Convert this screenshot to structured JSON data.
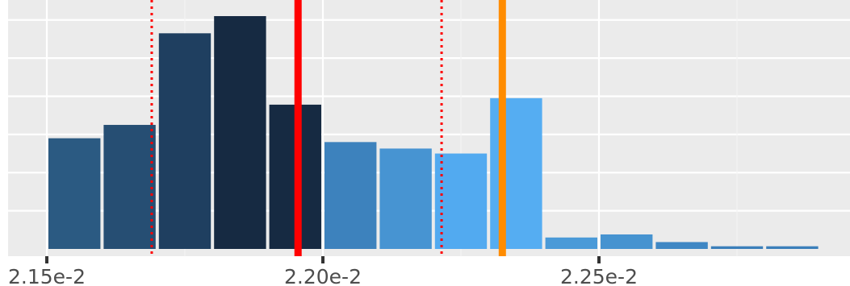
{
  "chart_data": {
    "type": "bar",
    "title": "",
    "xlabel": "",
    "ylabel": "",
    "x_axis": {
      "min": 0.0215,
      "max": 0.02295,
      "ticks": [
        {
          "value": 0.0215,
          "label": "2.15e-2"
        },
        {
          "value": 0.022,
          "label": "2.20e-2"
        },
        {
          "value": 0.0225,
          "label": "2.25e-2"
        }
      ],
      "minor_gridlines": [
        0.02175,
        0.02225,
        0.02275
      ]
    },
    "y_axis": {
      "min": 0,
      "max": 6.3,
      "gridlines": [
        1,
        2,
        3,
        4,
        5,
        6
      ]
    },
    "grid": true,
    "bin_width": 0.0001,
    "bins": [
      {
        "x0": 0.0215,
        "x1": 0.0216,
        "count": 2.9,
        "color": "#2b5a82"
      },
      {
        "x0": 0.0216,
        "x1": 0.0217,
        "count": 3.25,
        "color": "#264e73"
      },
      {
        "x0": 0.0217,
        "x1": 0.0218,
        "count": 5.65,
        "color": "#1f3f60"
      },
      {
        "x0": 0.0218,
        "x1": 0.0219,
        "count": 6.1,
        "color": "#162a42"
      },
      {
        "x0": 0.0219,
        "x1": 0.022,
        "count": 3.78,
        "color": "#162a42"
      },
      {
        "x0": 0.022,
        "x1": 0.0221,
        "count": 2.8,
        "color": "#3d82bd"
      },
      {
        "x0": 0.0221,
        "x1": 0.0222,
        "count": 2.63,
        "color": "#4794d2"
      },
      {
        "x0": 0.0222,
        "x1": 0.0223,
        "count": 2.5,
        "color": "#52aaf0"
      },
      {
        "x0": 0.0223,
        "x1": 0.0224,
        "count": 3.95,
        "color": "#55adf2"
      },
      {
        "x0": 0.0224,
        "x1": 0.0225,
        "count": 0.3,
        "color": "#4a9ad8"
      },
      {
        "x0": 0.0225,
        "x1": 0.0226,
        "count": 0.38,
        "color": "#4693d0"
      },
      {
        "x0": 0.0226,
        "x1": 0.0227,
        "count": 0.18,
        "color": "#3f87c4"
      },
      {
        "x0": 0.0227,
        "x1": 0.0228,
        "count": 0.07,
        "color": "#3b7fba"
      },
      {
        "x0": 0.0228,
        "x1": 0.0229,
        "count": 0.07,
        "color": "#3b7fba"
      }
    ],
    "reference_lines": [
      {
        "x": 0.021955,
        "style": "solid",
        "color": "#ff0000"
      },
      {
        "x": 0.022325,
        "style": "solid",
        "color": "#ff8c00"
      },
      {
        "x": 0.02169,
        "style": "dotted",
        "color": "#ff0000"
      },
      {
        "x": 0.022215,
        "style": "dotted",
        "color": "#ff0000"
      }
    ],
    "colors": {
      "panel_background": "#ebebeb",
      "grid_major": "#ffffff",
      "grid_minor": "#f4f4f4",
      "tick_mark": "#333333",
      "tick_label": "#4d4d4d"
    }
  }
}
